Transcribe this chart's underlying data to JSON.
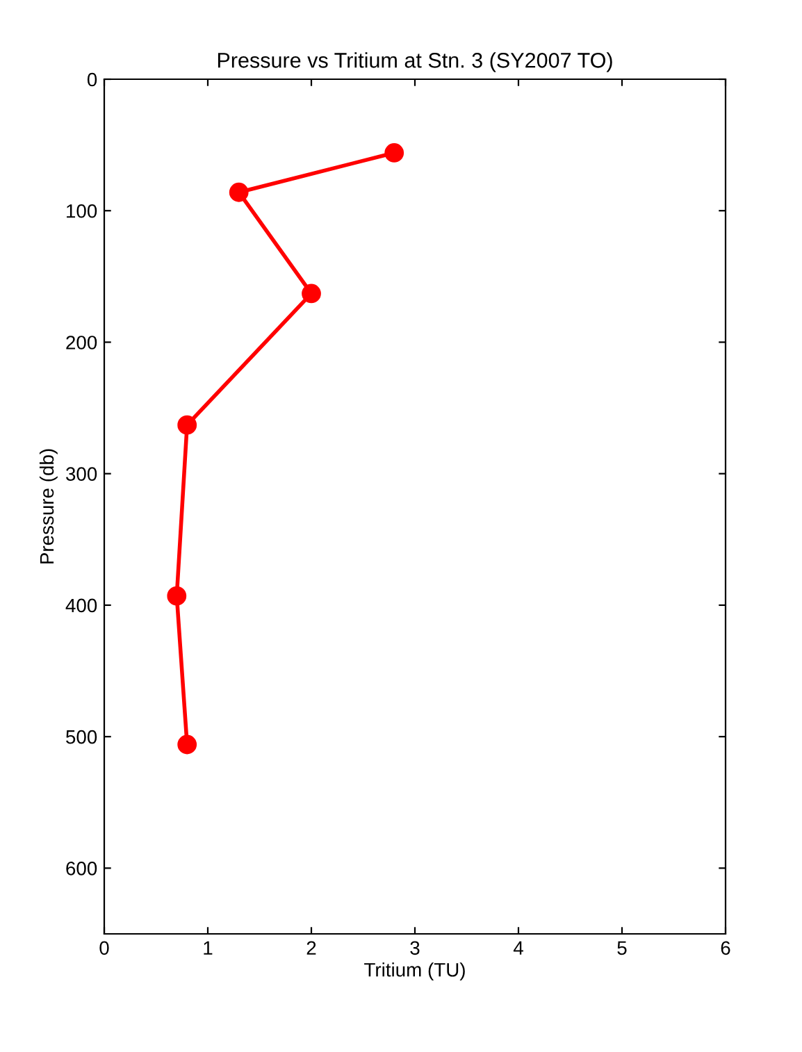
{
  "chart_data": {
    "type": "line",
    "title": "Pressure vs Tritium at Stn. 3 (SY2007 TO)",
    "xlabel": "Tritium (TU)",
    "ylabel": "Pressure (db)",
    "series": [
      {
        "color": "#ff0000",
        "x": [
          2.8,
          1.3,
          2.0,
          0.8,
          0.7,
          0.8
        ],
        "values": [
          56,
          86,
          163,
          263,
          393,
          506
        ]
      }
    ],
    "xlim": [
      0,
      6
    ],
    "xticks": [
      0,
      1,
      2,
      3,
      4,
      5,
      6
    ],
    "ylim": [
      650,
      0
    ],
    "yticks": [
      0,
      100,
      200,
      300,
      400,
      500,
      600
    ],
    "grid": false,
    "legend": false,
    "marker": "circle",
    "line_style": "solid"
  }
}
